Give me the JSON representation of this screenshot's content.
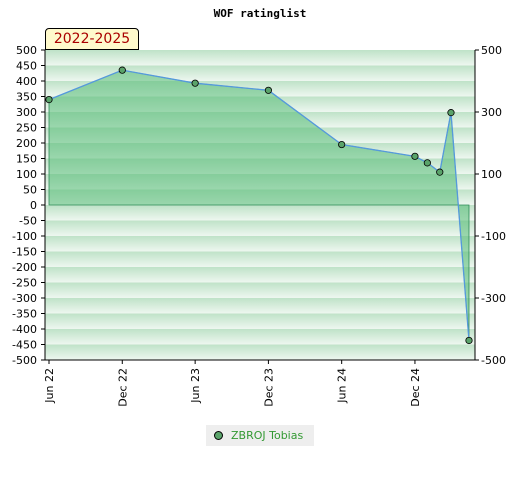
{
  "chart_data": {
    "type": "area",
    "title": "WOF ratinglist",
    "period_label": "2022-2025",
    "ylim": [
      -500,
      500
    ],
    "y_ticks_left": [
      500,
      450,
      400,
      350,
      300,
      250,
      200,
      150,
      100,
      50,
      0,
      -50,
      -100,
      -150,
      -200,
      -250,
      -300,
      -350,
      -400,
      -450,
      -500
    ],
    "y_ticks_right": [
      500,
      300,
      100,
      -100,
      -300,
      -500
    ],
    "x_range": [
      "2022-05-22",
      "2025-04-30"
    ],
    "x_ticks": [
      {
        "date": "2022-06-01",
        "label": "Jun 22"
      },
      {
        "date": "2022-12-01",
        "label": "Dec 22"
      },
      {
        "date": "2023-06-01",
        "label": "Jun 23"
      },
      {
        "date": "2023-12-01",
        "label": "Dec 23"
      },
      {
        "date": "2024-06-01",
        "label": "Jun 24"
      },
      {
        "date": "2024-12-01",
        "label": "Dec 24"
      }
    ],
    "series": [
      {
        "name": "ZBROJ Tobias",
        "points": [
          {
            "x": "2022-06-01",
            "y": 340
          },
          {
            "x": "2022-12-01",
            "y": 435
          },
          {
            "x": "2023-06-01",
            "y": 393
          },
          {
            "x": "2023-12-01",
            "y": 370
          },
          {
            "x": "2024-06-01",
            "y": 195
          },
          {
            "x": "2024-12-01",
            "y": 157
          },
          {
            "x": "2025-01-01",
            "y": 136
          },
          {
            "x": "2025-02-01",
            "y": 106
          },
          {
            "x": "2025-03-01",
            "y": 298
          },
          {
            "x": "2025-04-15",
            "y": -437
          }
        ]
      }
    ],
    "colors": {
      "line": "#5599dd",
      "fill": "#55bb77",
      "marker": "#5aa36a",
      "band_dark": "#bfe2c8",
      "band_light": "#eef7f0",
      "badge_bg": "#fffacc",
      "badge_text": "#aa0000",
      "legend_text": "#339933"
    }
  }
}
